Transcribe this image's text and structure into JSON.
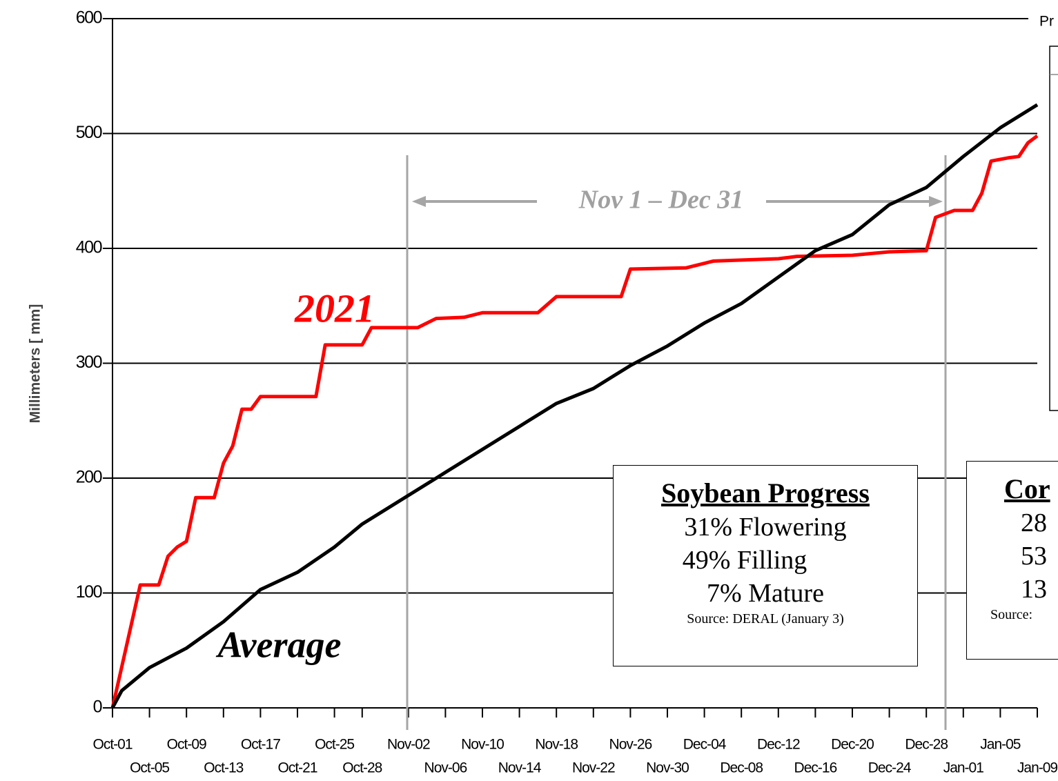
{
  "chart_data": {
    "type": "line",
    "ylabel": "Millimeters [ mm]",
    "xlim": [
      "Oct-01",
      "Jan-09"
    ],
    "xticks": [
      "Oct-01",
      "Oct-05",
      "Oct-09",
      "Oct-13",
      "Oct-17",
      "Oct-21",
      "Oct-25",
      "Oct-28",
      "Nov-02",
      "Nov-06",
      "Nov-10",
      "Nov-14",
      "Nov-18",
      "Nov-22",
      "Nov-26",
      "Nov-30",
      "Dec-04",
      "Dec-08",
      "Dec-12",
      "Dec-16",
      "Dec-20",
      "Dec-24",
      "Dec-28",
      "Jan-01",
      "Jan-05",
      "Jan-09"
    ],
    "ylim": [
      0,
      600
    ],
    "yticks": [
      0,
      100,
      200,
      300,
      400,
      500,
      600
    ],
    "grid": true,
    "series": [
      {
        "name": "2021",
        "color": "#ff0000",
        "x": [
          "Oct-01",
          "Oct-04",
          "Oct-06",
          "Oct-07",
          "Oct-08",
          "Oct-09",
          "Oct-10",
          "Oct-12",
          "Oct-13",
          "Oct-14",
          "Oct-15",
          "Oct-16",
          "Oct-17",
          "Oct-23",
          "Oct-24",
          "Oct-28",
          "Oct-29",
          "Nov-03",
          "Nov-05",
          "Nov-08",
          "Nov-10",
          "Nov-16",
          "Nov-18",
          "Nov-25",
          "Nov-26",
          "Dec-02",
          "Dec-05",
          "Dec-12",
          "Dec-14",
          "Dec-20",
          "Dec-24",
          "Dec-28",
          "Dec-29",
          "Dec-31",
          "Jan-02",
          "Jan-03",
          "Jan-04",
          "Jan-06",
          "Jan-07",
          "Jan-08",
          "Jan-09"
        ],
        "values": [
          0,
          107,
          107,
          132,
          140,
          145,
          183,
          183,
          213,
          228,
          260,
          260,
          271,
          271,
          316,
          316,
          331,
          331,
          339,
          340,
          344,
          344,
          358,
          358,
          382,
          383,
          389,
          391,
          393,
          394,
          397,
          398,
          427,
          433,
          433,
          448,
          476,
          479,
          480,
          492,
          498
        ]
      },
      {
        "name": "Average",
        "color": "#000000",
        "x": [
          "Oct-01",
          "Oct-02",
          "Oct-05",
          "Oct-09",
          "Oct-13",
          "Oct-17",
          "Oct-21",
          "Oct-25",
          "Oct-28",
          "Nov-02",
          "Nov-06",
          "Nov-10",
          "Nov-14",
          "Nov-18",
          "Nov-22",
          "Nov-26",
          "Nov-30",
          "Dec-04",
          "Dec-08",
          "Dec-12",
          "Dec-16",
          "Dec-20",
          "Dec-24",
          "Dec-28",
          "Jan-01",
          "Jan-05",
          "Jan-09"
        ],
        "values": [
          0,
          15,
          35,
          52,
          75,
          103,
          118,
          140,
          160,
          185,
          205,
          225,
          245,
          265,
          278,
          298,
          315,
          335,
          352,
          375,
          398,
          412,
          438,
          453,
          480,
          505,
          525
        ]
      }
    ],
    "annotation": "Nov 1 – Dec 31"
  },
  "soybean_box": {
    "title": "Soybean Progress",
    "lines": [
      "31% Flowering",
      "49% Filling",
      "7% Mature"
    ],
    "source": "Source: DERAL (January 3)"
  },
  "corn_box": {
    "title": "Cor",
    "lines": [
      "28",
      "53",
      "13"
    ],
    "source": "Source:"
  },
  "corner_text": "Pr"
}
